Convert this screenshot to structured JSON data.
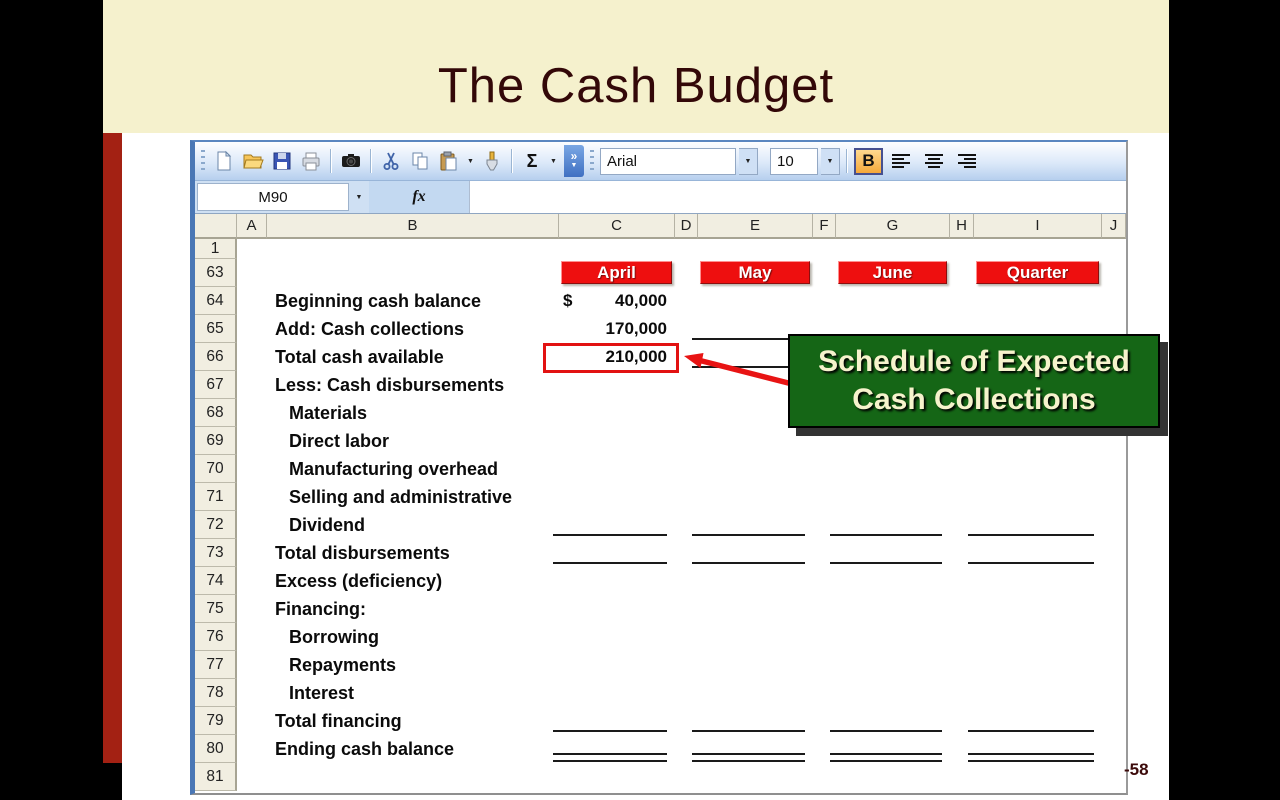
{
  "slide": {
    "title": "The Cash Budget",
    "page_number": "-58"
  },
  "callout": {
    "line1": "Schedule of Expected",
    "line2": "Cash Collections"
  },
  "excel": {
    "toolbar": {
      "font_name": "Arial",
      "font_size": "10",
      "bold_label": "B",
      "autosum_label": "Σ",
      "options_chevron": "»",
      "dropdown_arrow": "▼",
      "icons": [
        "new-document",
        "open",
        "save",
        "print",
        "camera",
        "cut",
        "copy",
        "paste",
        "format-painter",
        "autosum",
        "toolbar-options",
        "font-combo",
        "font-size-combo",
        "bold",
        "align-left",
        "align-center",
        "align-right"
      ]
    },
    "formula_bar": {
      "name_box": "M90",
      "fx_label": "fx"
    },
    "columns": [
      "A",
      "B",
      "C",
      "D",
      "E",
      "F",
      "G",
      "H",
      "I",
      "J"
    ],
    "month_headers": [
      "April",
      "May",
      "June",
      "Quarter"
    ],
    "rows": [
      {
        "num": "1"
      },
      {
        "num": "63",
        "type": "month-headers"
      },
      {
        "num": "64",
        "label": "Beginning cash balance",
        "values": {
          "c": {
            "prefix": "$",
            "amount": "40,000"
          }
        }
      },
      {
        "num": "65",
        "label": "Add: Cash collections",
        "values": {
          "c": {
            "amount": "170,000"
          }
        },
        "lines": {
          "e": "single"
        }
      },
      {
        "num": "66",
        "label": "Total cash available",
        "values": {
          "c": {
            "amount": "210,000",
            "boxed": true
          }
        },
        "lines": {
          "e": "single"
        }
      },
      {
        "num": "67",
        "label": "Less: Cash disbursements"
      },
      {
        "num": "68",
        "label": "Materials",
        "indent": true
      },
      {
        "num": "69",
        "label": "Direct labor",
        "indent": true
      },
      {
        "num": "70",
        "label": "Manufacturing overhead",
        "indent": true
      },
      {
        "num": "71",
        "label": "Selling and administrative",
        "indent": true
      },
      {
        "num": "72",
        "label": "Dividend",
        "indent": true,
        "lines": {
          "c": "single",
          "e": "single",
          "g": "single",
          "i": "single"
        }
      },
      {
        "num": "73",
        "label": "Total disbursements",
        "lines": {
          "c": "single",
          "e": "single",
          "g": "single",
          "i": "single"
        }
      },
      {
        "num": "74",
        "label": "Excess (deficiency)"
      },
      {
        "num": "75",
        "label": "Financing:"
      },
      {
        "num": "76",
        "label": "Borrowing",
        "indent": true
      },
      {
        "num": "77",
        "label": "Repayments",
        "indent": true
      },
      {
        "num": "78",
        "label": "Interest",
        "indent": true
      },
      {
        "num": "79",
        "label": "Total financing",
        "lines": {
          "c": "single",
          "e": "single",
          "g": "single",
          "i": "single"
        }
      },
      {
        "num": "80",
        "label": "Ending cash balance",
        "lines": {
          "c": "double",
          "e": "double",
          "g": "double",
          "i": "double"
        }
      },
      {
        "num": "81"
      }
    ]
  },
  "colors": {
    "header_red": "#ee1010",
    "callout_green": "#156616",
    "accent_bar_red": "#a32113",
    "title_maroon": "#330808",
    "cream_band": "#f5f1cd"
  }
}
